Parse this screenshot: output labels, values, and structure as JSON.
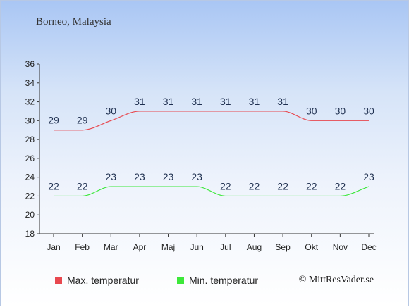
{
  "header": {
    "location": "Borneo, Malaysia"
  },
  "legend": {
    "max_label": "Max. temperatur",
    "min_label": "Min. temperatur"
  },
  "footer": {
    "copyright": "© MittResVader.se"
  },
  "colors": {
    "max": "#e8484f",
    "min": "#3ce83a",
    "axis": "#333333",
    "label": "#1f3050"
  },
  "chart_data": {
    "type": "line",
    "categories": [
      "Jan",
      "Feb",
      "Mar",
      "Apr",
      "Maj",
      "Jun",
      "Jul",
      "Aug",
      "Sep",
      "Okt",
      "Nov",
      "Dec"
    ],
    "series": [
      {
        "name": "Max. temperatur",
        "values": [
          29,
          29,
          30,
          31,
          31,
          31,
          31,
          31,
          31,
          30,
          30,
          30
        ]
      },
      {
        "name": "Min. temperatur",
        "values": [
          22,
          22,
          23,
          23,
          23,
          23,
          22,
          22,
          22,
          22,
          22,
          23
        ]
      }
    ],
    "yticks": [
      18,
      20,
      22,
      24,
      26,
      28,
      30,
      32,
      34,
      36
    ],
    "ylim": [
      18,
      36
    ],
    "title": "",
    "xlabel": "",
    "ylabel": "",
    "grid": false,
    "legend_position": "bottom"
  }
}
